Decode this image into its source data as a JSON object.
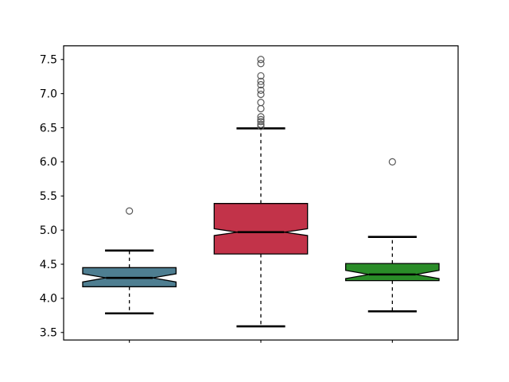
{
  "figure": {
    "background": "#ffffff",
    "title": ""
  },
  "chart_data": {
    "type": "boxplot",
    "variant": "notched",
    "orientation": "vertical",
    "title": "",
    "xlabel": "",
    "ylabel": "",
    "grid": false,
    "legend": null,
    "xlim": [
      0.5,
      3.5
    ],
    "ylim": [
      3.39,
      7.7
    ],
    "ytick_values": [
      3.5,
      4.0,
      4.5,
      5.0,
      5.5,
      6.0,
      6.5,
      7.0,
      7.5
    ],
    "ytick_labels": [
      "3.5",
      "4.0",
      "4.5",
      "5.0",
      "5.5",
      "6.0",
      "6.5",
      "7.0",
      "7.5"
    ],
    "xtick_values": [
      1,
      2,
      3
    ],
    "xtick_labels": [
      "",
      "",
      ""
    ],
    "box_width": 0.71,
    "cap_width": 0.37,
    "boxes": [
      {
        "name": "box-1",
        "position": 1,
        "fill_color": "#4e7e91",
        "whislo": 3.78,
        "q1": 4.17,
        "med": 4.3,
        "q3": 4.45,
        "whishi": 4.7,
        "notch_lo": 4.24,
        "notch_hi": 4.36,
        "fliers": [
          5.28
        ]
      },
      {
        "name": "box-2",
        "position": 2,
        "fill_color": "#c23349",
        "whislo": 3.59,
        "q1": 4.65,
        "med": 4.97,
        "q3": 5.39,
        "whishi": 6.49,
        "notch_lo": 4.92,
        "notch_hi": 5.02,
        "fliers": [
          6.52,
          6.55,
          6.59,
          6.62,
          6.66,
          6.78,
          6.87,
          6.99,
          7.05,
          7.13,
          7.18,
          7.26,
          7.44,
          7.5
        ]
      },
      {
        "name": "box-3",
        "position": 3,
        "fill_color": "#2a8c28",
        "whislo": 3.81,
        "q1": 4.26,
        "med": 4.35,
        "q3": 4.51,
        "whishi": 4.9,
        "notch_lo": 4.29,
        "notch_hi": 4.41,
        "fliers": [
          6.0
        ]
      }
    ],
    "style": {
      "spine_color": "#000000",
      "tick_color": "#000000",
      "box_edge_color": "#000000",
      "median_color": "#000000",
      "whisker_color": "#000000",
      "cap_color": "#000000",
      "flier_edge_color": "#595959",
      "plot_background": "#ffffff"
    }
  }
}
